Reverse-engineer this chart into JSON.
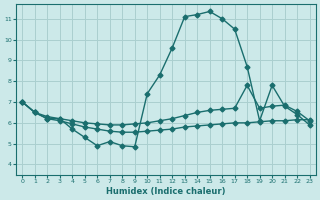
{
  "xlabel": "Humidex (Indice chaleur)",
  "ylabel": "",
  "xlim": [
    -0.5,
    23.5
  ],
  "ylim": [
    3.5,
    11.7
  ],
  "yticks": [
    4,
    5,
    6,
    7,
    8,
    9,
    10,
    11
  ],
  "xticks": [
    0,
    1,
    2,
    3,
    4,
    5,
    6,
    7,
    8,
    9,
    10,
    11,
    12,
    13,
    14,
    15,
    16,
    17,
    18,
    19,
    20,
    21,
    22,
    23
  ],
  "bg_color": "#cce9e9",
  "grid_color": "#aacfcf",
  "line_color": "#1a6e6e",
  "line1_x": [
    0,
    1,
    2,
    3,
    4,
    5,
    6,
    7,
    8,
    9,
    10,
    11,
    12,
    13,
    14,
    15,
    16,
    17,
    18,
    19,
    20,
    21,
    22,
    23
  ],
  "line1_y": [
    7.0,
    6.5,
    6.2,
    6.2,
    5.7,
    5.3,
    4.9,
    5.1,
    4.9,
    4.85,
    7.4,
    8.3,
    9.6,
    11.1,
    11.2,
    11.35,
    11.0,
    10.5,
    8.7,
    6.1,
    7.8,
    6.8,
    6.4,
    5.9
  ],
  "line2_x": [
    0,
    1,
    2,
    3,
    4,
    5,
    6,
    7,
    8,
    9,
    10,
    11,
    12,
    13,
    14,
    15,
    16,
    17,
    18,
    19,
    20,
    21,
    22,
    23
  ],
  "line2_y": [
    7.0,
    6.5,
    6.3,
    6.2,
    6.1,
    6.0,
    5.95,
    5.9,
    5.9,
    5.95,
    6.0,
    6.1,
    6.2,
    6.35,
    6.5,
    6.6,
    6.65,
    6.7,
    7.8,
    6.7,
    6.8,
    6.85,
    6.55,
    6.1
  ],
  "line3_x": [
    0,
    1,
    2,
    3,
    4,
    5,
    6,
    7,
    8,
    9,
    10,
    11,
    12,
    13,
    14,
    15,
    16,
    17,
    18,
    19,
    20,
    21,
    22,
    23
  ],
  "line3_y": [
    7.0,
    6.5,
    6.2,
    6.1,
    5.95,
    5.8,
    5.7,
    5.6,
    5.55,
    5.55,
    5.6,
    5.65,
    5.7,
    5.8,
    5.85,
    5.9,
    5.95,
    6.0,
    6.0,
    6.05,
    6.1,
    6.1,
    6.15,
    6.15
  ]
}
